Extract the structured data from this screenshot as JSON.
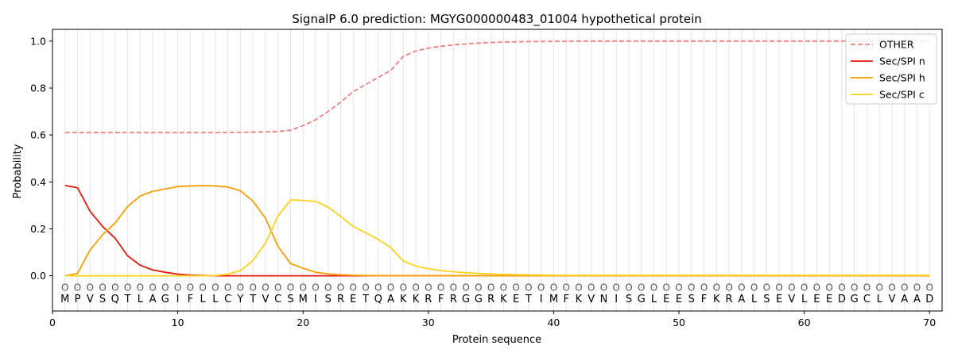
{
  "chart_data": {
    "type": "line",
    "title": "SignalP 6.0 prediction: MGYG000000483_01004 hypothetical protein",
    "xlabel": "Protein sequence",
    "ylabel": "Probability",
    "xlim": [
      0,
      71
    ],
    "ylim": [
      -0.15,
      1.05
    ],
    "xticks": [
      0,
      10,
      20,
      30,
      40,
      50,
      60,
      70
    ],
    "yticks": [
      0.0,
      0.2,
      0.4,
      0.6,
      0.8,
      1.0
    ],
    "ytick_labels": [
      "0.0",
      "0.2",
      "0.4",
      "0.6",
      "0.8",
      "1.0"
    ],
    "grid": "vertical lines at each residue",
    "legend_position": "top-right",
    "sequence": [
      "M",
      "P",
      "V",
      "S",
      "Q",
      "T",
      "L",
      "A",
      "G",
      "I",
      "F",
      "L",
      "L",
      "C",
      "Y",
      "T",
      "V",
      "C",
      "S",
      "M",
      "I",
      "S",
      "R",
      "E",
      "T",
      "Q",
      "A",
      "K",
      "K",
      "R",
      "F",
      "R",
      "G",
      "G",
      "R",
      "K",
      "E",
      "T",
      "I",
      "M",
      "F",
      "K",
      "V",
      "N",
      "I",
      "S",
      "G",
      "L",
      "E",
      "E",
      "S",
      "F",
      "K",
      "R",
      "A",
      "L",
      "S",
      "E",
      "V",
      "L",
      "E",
      "E",
      "D",
      "G",
      "C",
      "L",
      "V",
      "A",
      "A",
      "D"
    ],
    "position_marker": "O",
    "series": [
      {
        "name": "OTHER",
        "color": "#f08080",
        "style": "dashed",
        "values": [
          0.61,
          0.61,
          0.61,
          0.61,
          0.61,
          0.61,
          0.61,
          0.61,
          0.61,
          0.61,
          0.61,
          0.61,
          0.61,
          0.611,
          0.611,
          0.612,
          0.613,
          0.615,
          0.62,
          0.64,
          0.665,
          0.7,
          0.74,
          0.785,
          0.815,
          0.845,
          0.875,
          0.935,
          0.958,
          0.97,
          0.978,
          0.984,
          0.988,
          0.991,
          0.994,
          0.996,
          0.997,
          0.998,
          0.998,
          0.999,
          0.999,
          1.0,
          1.0,
          1.0,
          1.0,
          1.0,
          1.0,
          1.0,
          1.0,
          1.0,
          1.0,
          1.0,
          1.0,
          1.0,
          1.0,
          1.0,
          1.0,
          1.0,
          1.0,
          1.0,
          1.0,
          1.0,
          1.0,
          1.0,
          1.0,
          1.0,
          1.0,
          1.0,
          1.0,
          1.0
        ]
      },
      {
        "name": "Sec/SPI n",
        "color": "#e8190e",
        "style": "solid",
        "values": [
          0.385,
          0.375,
          0.275,
          0.21,
          0.16,
          0.085,
          0.045,
          0.025,
          0.015,
          0.007,
          0.003,
          0.001,
          0.0,
          0.0,
          0.0,
          0.0,
          0.0,
          0.0,
          0.0,
          0.0,
          0.0,
          0.0,
          0.0,
          0.0,
          0.0,
          0.0,
          0.0,
          0.0,
          0.0,
          0.0,
          0.0,
          0.0,
          0.0,
          0.0,
          0.0,
          0.0,
          0.0,
          0.0,
          0.0,
          0.0,
          0.0,
          0.0,
          0.0,
          0.0,
          0.0,
          0.0,
          0.0,
          0.0,
          0.0,
          0.0,
          0.0,
          0.0,
          0.0,
          0.0,
          0.0,
          0.0,
          0.0,
          0.0,
          0.0,
          0.0,
          0.0,
          0.0,
          0.0,
          0.0,
          0.0,
          0.0,
          0.0,
          0.0,
          0.0,
          0.0
        ]
      },
      {
        "name": "Sec/SPI h",
        "color": "#f5a000",
        "style": "solid",
        "values": [
          0.0,
          0.01,
          0.11,
          0.175,
          0.225,
          0.295,
          0.34,
          0.36,
          0.37,
          0.38,
          0.383,
          0.384,
          0.383,
          0.378,
          0.362,
          0.318,
          0.245,
          0.125,
          0.052,
          0.032,
          0.015,
          0.008,
          0.004,
          0.002,
          0.001,
          0.0,
          0.0,
          0.0,
          0.0,
          0.0,
          0.0,
          0.0,
          0.0,
          0.0,
          0.0,
          0.0,
          0.0,
          0.0,
          0.0,
          0.0,
          0.0,
          0.0,
          0.0,
          0.0,
          0.0,
          0.0,
          0.0,
          0.0,
          0.0,
          0.0,
          0.0,
          0.0,
          0.0,
          0.0,
          0.0,
          0.0,
          0.0,
          0.0,
          0.0,
          0.0,
          0.0,
          0.0,
          0.0,
          0.0,
          0.0,
          0.0,
          0.0,
          0.0,
          0.0,
          0.0
        ]
      },
      {
        "name": "Sec/SPI c",
        "color": "#ffd21e",
        "style": "solid",
        "values": [
          0.0,
          0.0,
          0.0,
          0.0,
          0.0,
          0.0,
          0.0,
          0.0,
          0.0,
          0.0,
          0.0,
          0.0,
          0.001,
          0.007,
          0.022,
          0.065,
          0.14,
          0.255,
          0.323,
          0.321,
          0.317,
          0.292,
          0.253,
          0.21,
          0.183,
          0.155,
          0.12,
          0.062,
          0.042,
          0.03,
          0.022,
          0.017,
          0.013,
          0.01,
          0.008,
          0.006,
          0.005,
          0.004,
          0.003,
          0.002,
          0.002,
          0.002,
          0.002,
          0.002,
          0.002,
          0.002,
          0.002,
          0.002,
          0.002,
          0.002,
          0.002,
          0.002,
          0.002,
          0.002,
          0.002,
          0.002,
          0.002,
          0.002,
          0.002,
          0.002,
          0.002,
          0.002,
          0.002,
          0.002,
          0.002,
          0.002,
          0.002,
          0.002,
          0.002,
          0.002
        ]
      }
    ]
  }
}
